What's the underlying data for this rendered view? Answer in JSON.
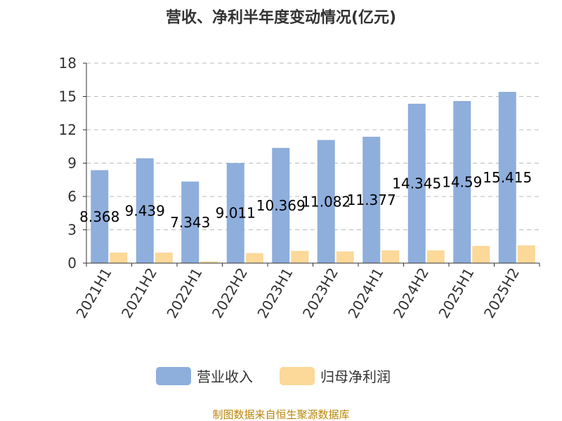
{
  "chart_data": {
    "type": "bar",
    "title": "营收、净利半年度变动情况(亿元)",
    "categories": [
      "2021H1",
      "2021H2",
      "2022H1",
      "2022H2",
      "2023H1",
      "2023H2",
      "2024H1",
      "2024H2",
      "2025H1",
      "2025H2"
    ],
    "series": [
      {
        "name": "营业收入",
        "color": "#8eaedc",
        "values": [
          8.368,
          9.439,
          7.343,
          9.011,
          10.369,
          11.082,
          11.377,
          14.345,
          14.59,
          15.415
        ],
        "labels": [
          "8.368",
          "9.439",
          "7.343",
          "9.011",
          "10.369",
          "11.082",
          "11.377",
          "14.345",
          "14.59",
          "15.415"
        ]
      },
      {
        "name": "归母净利润",
        "color": "#fcd899",
        "values": [
          0.95,
          0.95,
          0.15,
          0.9,
          1.1,
          1.05,
          1.15,
          1.15,
          1.55,
          1.6
        ]
      }
    ],
    "ylim": [
      0,
      18
    ],
    "yticks": [
      "0",
      "3",
      "6",
      "9",
      "12",
      "15",
      "18"
    ],
    "grid": true,
    "legend_position": "bottom"
  },
  "source": "制图数据来自恒生聚源数据库"
}
